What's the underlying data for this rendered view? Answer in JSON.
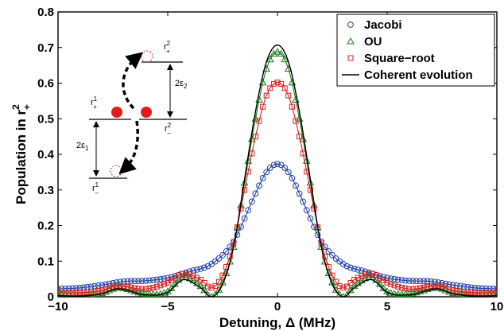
{
  "chart_data": {
    "type": "line",
    "xlabel": "Detuning, Δ (MHz)",
    "ylabel": {
      "text": "Population in r",
      "sup": "2",
      "sub": "+"
    },
    "xlim": [
      -10,
      10
    ],
    "ylim": [
      0,
      0.8
    ],
    "xticks": [
      -10,
      -5,
      0,
      5,
      10
    ],
    "yticks": [
      0,
      0.1,
      0.2,
      0.3,
      0.4,
      0.5,
      0.6,
      0.7,
      0.8
    ],
    "ytick_labels": [
      "0",
      "0.1",
      "0.2",
      "0.3",
      "0.4",
      "0.5",
      "0.6",
      "0.7",
      "0.8"
    ],
    "xtick_labels": [
      "−10",
      "−5",
      "0",
      "5",
      "10"
    ],
    "grid": false,
    "legend_position": "top-right",
    "series": [
      {
        "name": "Jacobi",
        "marker": "circle",
        "color": "#1f3fa6",
        "x": [
          -10,
          -9,
          -8,
          -7,
          -6,
          -5,
          -4,
          -3,
          -2,
          -1.5,
          -1,
          -0.5,
          0,
          0.5,
          1,
          1.5,
          2,
          3,
          4,
          5,
          6,
          7,
          8,
          9,
          10
        ],
        "y": [
          0.022,
          0.025,
          0.033,
          0.043,
          0.045,
          0.053,
          0.071,
          0.092,
          0.155,
          0.22,
          0.29,
          0.35,
          0.373,
          0.35,
          0.29,
          0.22,
          0.155,
          0.092,
          0.071,
          0.053,
          0.045,
          0.043,
          0.033,
          0.025,
          0.022
        ]
      },
      {
        "name": "OU",
        "marker": "triangle",
        "color": "#1a7a1a",
        "x": [
          -10,
          -9,
          -8,
          -7.3,
          -6,
          -5,
          -4.3,
          -3.5,
          -3,
          -2.5,
          -2,
          -1.5,
          -1,
          -0.5,
          0,
          0.5,
          1,
          1.5,
          2,
          2.5,
          3,
          3.5,
          4.3,
          5,
          6,
          7.3,
          8,
          9,
          10
        ],
        "y": [
          0.005,
          0.004,
          0.01,
          0.025,
          0.008,
          0.015,
          0.055,
          0.03,
          0.0,
          0.04,
          0.14,
          0.32,
          0.5,
          0.64,
          0.688,
          0.64,
          0.5,
          0.32,
          0.14,
          0.04,
          0.0,
          0.03,
          0.055,
          0.015,
          0.008,
          0.025,
          0.01,
          0.004,
          0.005
        ]
      },
      {
        "name": "Square−root",
        "marker": "square",
        "color": "#d42020",
        "x": [
          -10,
          -9,
          -8,
          -7.3,
          -6,
          -5,
          -4.3,
          -3.5,
          -3,
          -2.5,
          -2,
          -1.5,
          -1,
          -0.5,
          0,
          0.5,
          1,
          1.5,
          2,
          2.5,
          3,
          3.5,
          4.3,
          5,
          6,
          7.3,
          8,
          9,
          10
        ],
        "y": [
          0.01,
          0.012,
          0.018,
          0.03,
          0.022,
          0.04,
          0.065,
          0.048,
          0.025,
          0.06,
          0.15,
          0.3,
          0.45,
          0.565,
          0.602,
          0.565,
          0.45,
          0.3,
          0.15,
          0.06,
          0.025,
          0.048,
          0.065,
          0.04,
          0.022,
          0.03,
          0.018,
          0.012,
          0.01
        ]
      },
      {
        "name": "Coherent evolution",
        "marker": "none",
        "color": "#000000",
        "x": [
          -10,
          -9,
          -8,
          -7.3,
          -6,
          -5,
          -4.3,
          -3.5,
          -3,
          -2.5,
          -2,
          -1.5,
          -1,
          -0.5,
          0,
          0.5,
          1,
          1.5,
          2,
          2.5,
          3,
          3.5,
          4.3,
          5,
          6,
          7.3,
          8,
          9,
          10
        ],
        "y": [
          0.003,
          0.002,
          0.008,
          0.022,
          0.005,
          0.012,
          0.048,
          0.025,
          0.0,
          0.035,
          0.14,
          0.33,
          0.52,
          0.66,
          0.707,
          0.66,
          0.52,
          0.33,
          0.14,
          0.035,
          0.0,
          0.025,
          0.048,
          0.012,
          0.005,
          0.022,
          0.008,
          0.002,
          0.003
        ]
      }
    ],
    "inset": {
      "labels": [
        {
          "base": "r",
          "sup": "2",
          "sub": "+"
        },
        {
          "base": "r",
          "sup": "1",
          "sub": "+"
        },
        {
          "base": "r",
          "sup": "2",
          "sub": "−"
        },
        {
          "base": "r",
          "sup": "1",
          "sub": "−"
        },
        {
          "base": "2ε",
          "sub": "2"
        },
        {
          "base": "2ε",
          "sub": "1"
        }
      ],
      "dot_color": "#e31b1b"
    }
  }
}
